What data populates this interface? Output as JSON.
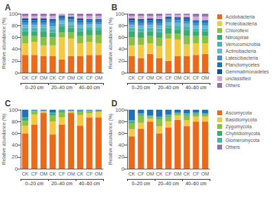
{
  "chart_data": [
    {
      "type": "bar",
      "title": "A",
      "stacked": true,
      "grid": false,
      "categories": [
        "CK",
        "CF",
        "OM",
        "CK",
        "CF",
        "OM",
        "CK",
        "CF",
        "OM"
      ],
      "annotations": [
        "0–20 cm",
        "20–40 cm",
        "40–60 cm"
      ],
      "ylabel": "Relative abundance (%)",
      "ylim": [
        0,
        100
      ],
      "yticks": [
        0,
        20,
        40,
        60,
        80,
        100
      ],
      "series": [
        {
          "name": "Acidobacteria",
          "color": "#E86A1A",
          "values": [
            30,
            30,
            28,
            28,
            22,
            28,
            28,
            30,
            30
          ]
        },
        {
          "name": "Proteobacteria",
          "color": "#F5C842",
          "values": [
            20,
            22,
            18,
            18,
            38,
            30,
            22,
            22,
            20
          ]
        },
        {
          "name": "Chloroflexi",
          "color": "#8DC03F",
          "values": [
            12,
            10,
            14,
            14,
            8,
            10,
            12,
            12,
            14
          ]
        },
        {
          "name": "Nitrospirae",
          "color": "#3BAB6F",
          "values": [
            8,
            8,
            10,
            8,
            10,
            8,
            8,
            8,
            8
          ]
        },
        {
          "name": "Verrucomicrobia",
          "color": "#46B5AD",
          "values": [
            6,
            6,
            6,
            6,
            5,
            5,
            6,
            5,
            5
          ]
        },
        {
          "name": "Actinobacteria",
          "color": "#6AB3D6",
          "values": [
            5,
            5,
            5,
            5,
            5,
            5,
            5,
            5,
            5
          ]
        },
        {
          "name": "Latescibacteria",
          "color": "#4292C6",
          "values": [
            4,
            4,
            4,
            5,
            4,
            4,
            4,
            4,
            4
          ]
        },
        {
          "name": "Planctomycetes",
          "color": "#2172B5",
          "values": [
            4,
            4,
            4,
            4,
            3,
            3,
            4,
            3,
            3
          ]
        },
        {
          "name": "Gemmatimonadetes",
          "color": "#08529D",
          "values": [
            3,
            3,
            3,
            3,
            2,
            2,
            3,
            2,
            2
          ]
        },
        {
          "name": "unclassified",
          "color": "#D4A8D4",
          "values": [
            4,
            4,
            4,
            5,
            3,
            3,
            4,
            5,
            5
          ]
        },
        {
          "name": "Others",
          "color": "#9870B0",
          "values": [
            4,
            4,
            4,
            4,
            0,
            2,
            4,
            4,
            4
          ]
        }
      ]
    },
    {
      "type": "bar",
      "title": "B",
      "stacked": true,
      "grid": false,
      "legend": "right",
      "categories": [
        "CK",
        "CF",
        "OM",
        "CK",
        "CF",
        "OM",
        "CK",
        "CF",
        "OM"
      ],
      "annotations": [
        "0–20 cm",
        "20–40 cm",
        "40–60 cm"
      ],
      "ylabel": "Relative abundance (%)",
      "ylim": [
        0,
        100
      ],
      "yticks": [
        0,
        20,
        40,
        60,
        80,
        100
      ],
      "series": [
        {
          "name": "Acidobacteria",
          "color": "#E86A1A",
          "values": [
            28,
            25,
            32,
            25,
            20,
            28,
            28,
            30,
            32
          ]
        },
        {
          "name": "Proteobacteria",
          "color": "#F5C842",
          "values": [
            18,
            22,
            18,
            20,
            38,
            28,
            20,
            20,
            18
          ]
        },
        {
          "name": "Chloroflexi",
          "color": "#8DC03F",
          "values": [
            14,
            12,
            12,
            14,
            8,
            10,
            14,
            12,
            12
          ]
        },
        {
          "name": "Nitrospirae",
          "color": "#3BAB6F",
          "values": [
            10,
            10,
            8,
            10,
            10,
            8,
            10,
            8,
            8
          ]
        },
        {
          "name": "Verrucomicrobia",
          "color": "#46B5AD",
          "values": [
            6,
            6,
            6,
            6,
            5,
            6,
            6,
            5,
            5
          ]
        },
        {
          "name": "Actinobacteria",
          "color": "#6AB3D6",
          "values": [
            5,
            5,
            5,
            5,
            5,
            5,
            5,
            5,
            5
          ]
        },
        {
          "name": "Latescibacteria",
          "color": "#4292C6",
          "values": [
            4,
            4,
            4,
            4,
            4,
            4,
            4,
            4,
            4
          ]
        },
        {
          "name": "Planctomycetes",
          "color": "#2172B5",
          "values": [
            4,
            4,
            4,
            4,
            3,
            3,
            4,
            3,
            3
          ]
        },
        {
          "name": "Gemmatimonadetes",
          "color": "#08529D",
          "values": [
            3,
            3,
            3,
            3,
            2,
            2,
            3,
            2,
            2
          ]
        },
        {
          "name": "unclassified",
          "color": "#D4A8D4",
          "values": [
            4,
            5,
            4,
            5,
            3,
            4,
            4,
            6,
            6
          ]
        },
        {
          "name": "Others",
          "color": "#9870B0",
          "values": [
            4,
            4,
            4,
            4,
            2,
            2,
            2,
            5,
            5
          ]
        }
      ]
    },
    {
      "type": "bar",
      "title": "C",
      "stacked": true,
      "grid": false,
      "categories": [
        "CK",
        "CF",
        "OM",
        "CK",
        "CF",
        "OM",
        "CK",
        "CF",
        "OM"
      ],
      "annotations": [
        "0–20 cm",
        "20–40 cm",
        "40–60 cm"
      ],
      "ylabel": "Relative abundance (%)",
      "ylim": [
        0,
        100
      ],
      "yticks": [
        0,
        20,
        40,
        60,
        80,
        100
      ],
      "series": [
        {
          "name": "Ascomycota",
          "color": "#E86A1A",
          "values": [
            60,
            75,
            95,
            58,
            75,
            95,
            73,
            87,
            87
          ]
        },
        {
          "name": "Basidiomycota",
          "color": "#F5C842",
          "values": [
            13,
            17,
            2,
            22,
            12,
            2,
            18,
            7,
            9
          ]
        },
        {
          "name": "Zygomycota",
          "color": "#8DC03F",
          "values": [
            8,
            5,
            1,
            10,
            8,
            1,
            5,
            3,
            2
          ]
        },
        {
          "name": "Chytridiomycota",
          "color": "#3BAB6F",
          "values": [
            5,
            1,
            1,
            4,
            3,
            1,
            2,
            1,
            1
          ]
        },
        {
          "name": "Glomeromycota",
          "color": "#46B5AD",
          "values": [
            1,
            1,
            0,
            1,
            1,
            0,
            1,
            1,
            0
          ]
        },
        {
          "name": "Others",
          "color": "#2172B5",
          "values": [
            13,
            1,
            1,
            5,
            1,
            1,
            1,
            1,
            1
          ]
        }
      ]
    },
    {
      "type": "bar",
      "title": "D",
      "stacked": true,
      "grid": false,
      "legend": "right",
      "categories": [
        "CK",
        "CF",
        "OM",
        "CK",
        "CF",
        "OM",
        "CK",
        "CF",
        "OM"
      ],
      "annotations": [
        "0–20 cm",
        "20–40 cm",
        "40–60 cm"
      ],
      "ylabel": "Relative abundance (%)",
      "ylim": [
        0,
        100
      ],
      "yticks": [
        0,
        20,
        40,
        60,
        80,
        100
      ],
      "series": [
        {
          "name": "Ascomycota",
          "color": "#E86A1A",
          "values": [
            55,
            68,
            80,
            60,
            70,
            83,
            72,
            80,
            80
          ]
        },
        {
          "name": "Basidiomycota",
          "color": "#F5C842",
          "values": [
            12,
            10,
            5,
            12,
            10,
            7,
            10,
            8,
            8
          ]
        },
        {
          "name": "Zygomycota",
          "color": "#8DC03F",
          "values": [
            10,
            12,
            3,
            12,
            8,
            3,
            8,
            4,
            4
          ]
        },
        {
          "name": "Chytridiomycota",
          "color": "#3BAB6F",
          "values": [
            3,
            2,
            1,
            2,
            2,
            1,
            2,
            1,
            1
          ]
        },
        {
          "name": "Glomeromycota",
          "color": "#46B5AD",
          "values": [
            2,
            2,
            1,
            2,
            2,
            1,
            2,
            2,
            1
          ]
        },
        {
          "name": "Others",
          "color": "#2172B5",
          "values": [
            18,
            6,
            10,
            12,
            8,
            5,
            6,
            5,
            6
          ]
        }
      ]
    }
  ]
}
